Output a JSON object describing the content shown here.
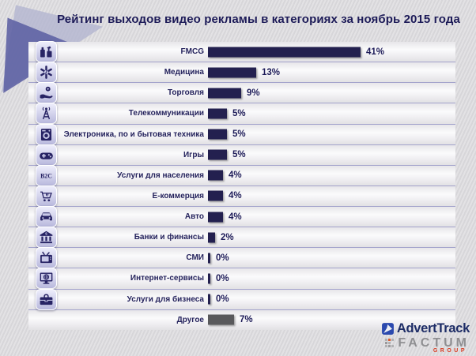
{
  "title": "Рейтинг выходов видео рекламы в категориях за ноябрь 2015 года",
  "chart_data": {
    "type": "bar",
    "orientation": "horizontal",
    "title": "Рейтинг выходов видео рекламы в категориях за ноябрь 2015 года",
    "unit": "%",
    "xlim": [
      0,
      45
    ],
    "grid": false,
    "legend": "none",
    "categories": [
      "FMCG",
      "Медицина",
      "Торговля",
      "Телекоммуникации",
      "Электроника, по и бытовая техника",
      "Игры",
      "Услуги для населения",
      "Е-коммерция",
      "Авто",
      "Банки и финансы",
      "СМИ",
      "Интернет-сервисы",
      "Услуги для бизнеса",
      "Другое"
    ],
    "values": [
      41,
      13,
      9,
      5,
      5,
      5,
      4,
      4,
      4,
      2,
      0,
      0,
      0,
      7
    ],
    "rows": [
      {
        "label": "FMCG",
        "value": 41,
        "display": "41%",
        "icon": "fmcg-icon",
        "bar_color": "#23204f"
      },
      {
        "label": "Медицина",
        "value": 13,
        "display": "13%",
        "icon": "medicine-icon",
        "bar_color": "#23204f"
      },
      {
        "label": "Торговля",
        "value": 9,
        "display": "9%",
        "icon": "trade-icon",
        "bar_color": "#23204f"
      },
      {
        "label": "Телекоммуникации",
        "value": 5,
        "display": "5%",
        "icon": "telecom-icon",
        "bar_color": "#23204f"
      },
      {
        "label": "Электроника, по и бытовая техника",
        "value": 5,
        "display": "5%",
        "icon": "electronics-icon",
        "bar_color": "#23204f"
      },
      {
        "label": "Игры",
        "value": 5,
        "display": "5%",
        "icon": "games-icon",
        "bar_color": "#23204f"
      },
      {
        "label": "Услуги для населения",
        "value": 4,
        "display": "4%",
        "icon": "b2c-icon",
        "bar_color": "#23204f"
      },
      {
        "label": "Е-коммерция",
        "value": 4,
        "display": "4%",
        "icon": "ecommerce-icon",
        "bar_color": "#23204f"
      },
      {
        "label": "Авто",
        "value": 4,
        "display": "4%",
        "icon": "auto-icon",
        "bar_color": "#23204f"
      },
      {
        "label": "Банки и финансы",
        "value": 2,
        "display": "2%",
        "icon": "bank-icon",
        "bar_color": "#23204f"
      },
      {
        "label": "СМИ",
        "value": 0,
        "display": "0%",
        "icon": "media-icon",
        "bar_color": "#23204f"
      },
      {
        "label": "Интернет-сервисы",
        "value": 0,
        "display": "0%",
        "icon": "internet-icon",
        "bar_color": "#23204f"
      },
      {
        "label": "Услуги для бизнеса",
        "value": 0,
        "display": "0%",
        "icon": "business-icon",
        "bar_color": "#23204f"
      },
      {
        "label": "Другое",
        "value": 7,
        "display": "7%",
        "icon": null,
        "bar_color": "#59595c"
      }
    ]
  },
  "footer_logo": {
    "adverttrack_text": "AdvertTrack",
    "factum_text": "FACTUM",
    "group_text": "GROUP"
  },
  "colors": {
    "bar_primary": "#23204f",
    "bar_other": "#59595c",
    "title_text": "#1d1b58",
    "row_separator": "#a3a3cc",
    "icon_tile": "#c5c5e4",
    "adverttrack_blue": "#2b49ae",
    "adverttrack_text": "#1d2c66",
    "factum_gray": "#8f8f92",
    "group_red": "#d93a21"
  }
}
